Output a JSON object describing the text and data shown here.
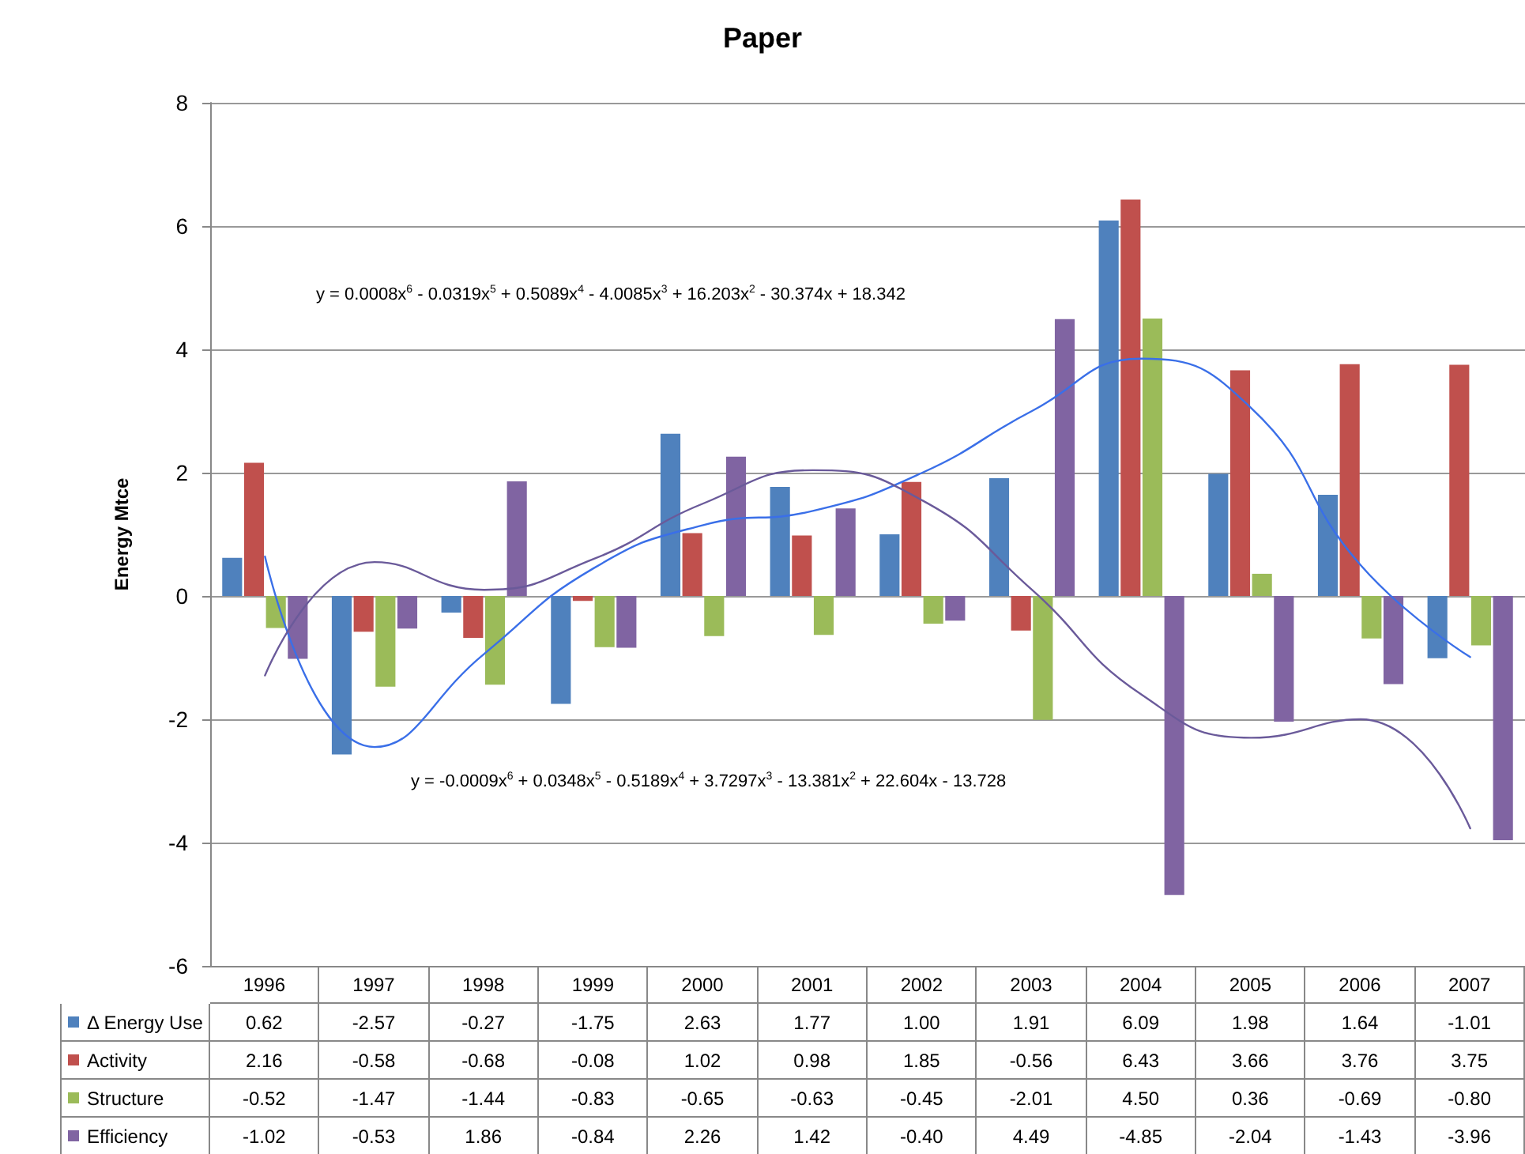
{
  "chart_data": {
    "type": "bar",
    "title": "Paper",
    "ylabel": "Energy Mtce",
    "categories": [
      "1996",
      "1997",
      "1998",
      "1999",
      "2000",
      "2001",
      "2002",
      "2003",
      "2004",
      "2005",
      "2006",
      "2007"
    ],
    "series": [
      {
        "name": "Δ Energy Use",
        "color": "#4f81bd",
        "values": [
          0.62,
          -2.57,
          -0.27,
          -1.75,
          2.63,
          1.77,
          1.0,
          1.91,
          6.09,
          1.98,
          1.64,
          -1.01
        ],
        "value_labels": [
          "0.62",
          "-2.57",
          "-0.27",
          "-1.75",
          "2.63",
          "1.77",
          "1.00",
          "1.91",
          "6.09",
          "1.98",
          "1.64",
          "-1.01"
        ]
      },
      {
        "name": "Activity",
        "color": "#c0504d",
        "values": [
          2.16,
          -0.58,
          -0.68,
          -0.08,
          1.02,
          0.98,
          1.85,
          -0.56,
          6.43,
          3.66,
          3.76,
          3.75
        ],
        "value_labels": [
          "2.16",
          "-0.58",
          "-0.68",
          "-0.08",
          "1.02",
          "0.98",
          "1.85",
          "-0.56",
          "6.43",
          "3.66",
          "3.76",
          "3.75"
        ]
      },
      {
        "name": "Structure",
        "color": "#9bbb59",
        "values": [
          -0.52,
          -1.47,
          -1.44,
          -0.83,
          -0.65,
          -0.63,
          -0.45,
          -2.01,
          4.5,
          0.36,
          -0.69,
          -0.8
        ],
        "value_labels": [
          "-0.52",
          "-1.47",
          "-1.44",
          "-0.83",
          "-0.65",
          "-0.63",
          "-0.45",
          "-2.01",
          "4.50",
          "0.36",
          "-0.69",
          "-0.80"
        ]
      },
      {
        "name": "Efficiency",
        "color": "#8064a2",
        "values": [
          -1.02,
          -0.53,
          1.86,
          -0.84,
          2.26,
          1.42,
          -0.4,
          4.49,
          -4.85,
          -2.04,
          -1.43,
          -3.96
        ],
        "value_labels": [
          "-1.02",
          "-0.53",
          "1.86",
          "-0.84",
          "2.26",
          "1.42",
          "-0.40",
          "4.49",
          "-4.85",
          "-2.04",
          "-1.43",
          "-3.96"
        ]
      },
      {
        "type": "line",
        "color": "#3a6fe8",
        "values": [
          0.64,
          -2.45,
          -0.94,
          0.45,
          1.15,
          1.38,
          2.0,
          3.0,
          3.85,
          3.05,
          0.5,
          -0.99
        ]
      },
      {
        "type": "line",
        "color": "#6a5a9a",
        "values": [
          -1.29,
          0.55,
          0.1,
          0.6,
          1.5,
          2.04,
          1.55,
          0.1,
          -1.6,
          -2.3,
          -2.0,
          -3.77
        ]
      }
    ],
    "annotations": [
      "y = 0.0008x$^{6}$ - 0.0319x$^{5}$ + 0.5089x$^{4}$ - 4.0085x$^{3}$ + 16.203x$^{2}$ - 30.374x + 18.342",
      "y = -0.0009x$^{6}$ + 0.0348x$^{5}$ - 0.5189x$^{4}$ + 3.7297x$^{3}$ - 13.381x$^{2}$ + 22.604x - 13.728"
    ],
    "ylim": [
      -6,
      8
    ],
    "yticks": [
      -6,
      -4,
      -2,
      0,
      2,
      4,
      6,
      8
    ],
    "grid": "y",
    "legend": "bottom",
    "marker": "none",
    "line_style": "solid"
  }
}
